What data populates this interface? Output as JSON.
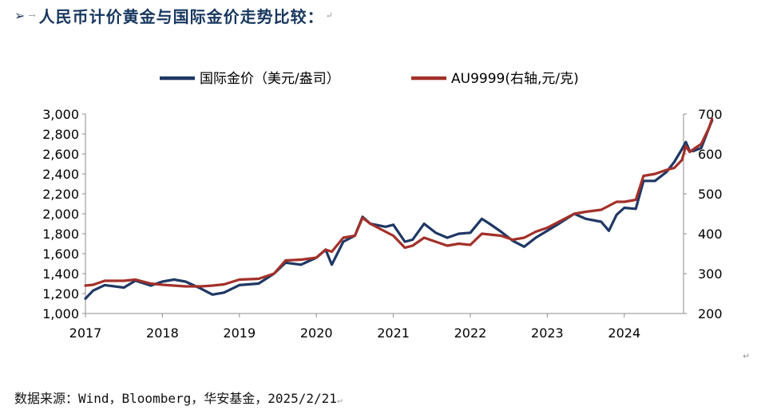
{
  "heading": {
    "bullet": "➢",
    "marker": "→",
    "title": "人民币计价黄金与国际金价走势比较：",
    "return_mark": "↵"
  },
  "source": {
    "text": "数据来源：Wind，Bloomberg，华安基金，2025/2/21",
    "return_mark": "↵"
  },
  "corner_mark": "↵",
  "chart_data": {
    "type": "line",
    "legend_position": "top",
    "grid": false,
    "x_ticks": [
      "2017",
      "2018",
      "2019",
      "2020",
      "2021",
      "2022",
      "2023",
      "2024"
    ],
    "x_range": [
      2017.0,
      2024.77
    ],
    "y_left": {
      "range": [
        1000,
        3000
      ],
      "ticks": [
        "1,000",
        "1,200",
        "1,400",
        "1,600",
        "1,800",
        "2,000",
        "2,200",
        "2,400",
        "2,600",
        "2,800",
        "3,000"
      ]
    },
    "y_right": {
      "range": [
        200,
        700
      ],
      "ticks": [
        "200",
        "300",
        "400",
        "500",
        "600",
        "700"
      ]
    },
    "series": [
      {
        "name": "国际金价（美元/盎司）",
        "axis": "left",
        "color": "#1f3864",
        "points": [
          [
            2017.0,
            1150
          ],
          [
            2017.1,
            1230
          ],
          [
            2017.25,
            1285
          ],
          [
            2017.5,
            1260
          ],
          [
            2017.65,
            1330
          ],
          [
            2017.85,
            1280
          ],
          [
            2018.0,
            1320
          ],
          [
            2018.15,
            1340
          ],
          [
            2018.3,
            1320
          ],
          [
            2018.5,
            1250
          ],
          [
            2018.65,
            1190
          ],
          [
            2018.8,
            1210
          ],
          [
            2019.0,
            1285
          ],
          [
            2019.25,
            1300
          ],
          [
            2019.45,
            1400
          ],
          [
            2019.6,
            1510
          ],
          [
            2019.8,
            1490
          ],
          [
            2020.0,
            1560
          ],
          [
            2020.12,
            1640
          ],
          [
            2020.2,
            1490
          ],
          [
            2020.35,
            1720
          ],
          [
            2020.5,
            1780
          ],
          [
            2020.6,
            1970
          ],
          [
            2020.7,
            1900
          ],
          [
            2020.9,
            1870
          ],
          [
            2021.0,
            1890
          ],
          [
            2021.15,
            1720
          ],
          [
            2021.25,
            1740
          ],
          [
            2021.4,
            1900
          ],
          [
            2021.55,
            1810
          ],
          [
            2021.7,
            1760
          ],
          [
            2021.85,
            1800
          ],
          [
            2022.0,
            1810
          ],
          [
            2022.15,
            1950
          ],
          [
            2022.25,
            1900
          ],
          [
            2022.4,
            1820
          ],
          [
            2022.55,
            1730
          ],
          [
            2022.7,
            1670
          ],
          [
            2022.85,
            1760
          ],
          [
            2023.0,
            1830
          ],
          [
            2023.15,
            1900
          ],
          [
            2023.35,
            2000
          ],
          [
            2023.5,
            1950
          ],
          [
            2023.7,
            1920
          ],
          [
            2023.8,
            1830
          ],
          [
            2023.9,
            1990
          ],
          [
            2024.0,
            2060
          ],
          [
            2024.15,
            2050
          ],
          [
            2024.25,
            2330
          ],
          [
            2024.4,
            2330
          ],
          [
            2024.55,
            2420
          ],
          [
            2024.65,
            2520
          ],
          [
            2024.75,
            2650
          ],
          [
            2024.8,
            2720
          ],
          [
            2024.85,
            2630
          ],
          [
            2024.9,
            2630
          ],
          [
            2025.0,
            2660
          ],
          [
            2025.1,
            2860
          ],
          [
            2025.14,
            2935
          ]
        ]
      },
      {
        "name": "AU9999(右轴,元/克)",
        "axis": "right",
        "color": "#a3302a",
        "points": [
          [
            2017.0,
            270
          ],
          [
            2017.1,
            272
          ],
          [
            2017.25,
            282
          ],
          [
            2017.5,
            282
          ],
          [
            2017.65,
            285
          ],
          [
            2017.85,
            275
          ],
          [
            2018.0,
            272
          ],
          [
            2018.15,
            270
          ],
          [
            2018.3,
            268
          ],
          [
            2018.5,
            268
          ],
          [
            2018.65,
            270
          ],
          [
            2018.8,
            273
          ],
          [
            2019.0,
            285
          ],
          [
            2019.25,
            287
          ],
          [
            2019.45,
            300
          ],
          [
            2019.6,
            333
          ],
          [
            2019.8,
            335
          ],
          [
            2020.0,
            340
          ],
          [
            2020.12,
            360
          ],
          [
            2020.2,
            355
          ],
          [
            2020.35,
            390
          ],
          [
            2020.5,
            395
          ],
          [
            2020.6,
            440
          ],
          [
            2020.7,
            425
          ],
          [
            2020.9,
            405
          ],
          [
            2021.0,
            395
          ],
          [
            2021.15,
            365
          ],
          [
            2021.25,
            370
          ],
          [
            2021.4,
            390
          ],
          [
            2021.55,
            380
          ],
          [
            2021.7,
            370
          ],
          [
            2021.85,
            375
          ],
          [
            2022.0,
            372
          ],
          [
            2022.15,
            400
          ],
          [
            2022.25,
            398
          ],
          [
            2022.4,
            395
          ],
          [
            2022.55,
            385
          ],
          [
            2022.7,
            390
          ],
          [
            2022.85,
            405
          ],
          [
            2023.0,
            415
          ],
          [
            2023.15,
            430
          ],
          [
            2023.35,
            450
          ],
          [
            2023.5,
            455
          ],
          [
            2023.7,
            460
          ],
          [
            2023.8,
            470
          ],
          [
            2023.9,
            480
          ],
          [
            2024.0,
            480
          ],
          [
            2024.15,
            485
          ],
          [
            2024.25,
            545
          ],
          [
            2024.4,
            550
          ],
          [
            2024.55,
            560
          ],
          [
            2024.65,
            565
          ],
          [
            2024.75,
            585
          ],
          [
            2024.8,
            620
          ],
          [
            2024.85,
            605
          ],
          [
            2024.9,
            612
          ],
          [
            2025.0,
            625
          ],
          [
            2025.1,
            665
          ],
          [
            2025.14,
            688
          ]
        ]
      }
    ]
  }
}
